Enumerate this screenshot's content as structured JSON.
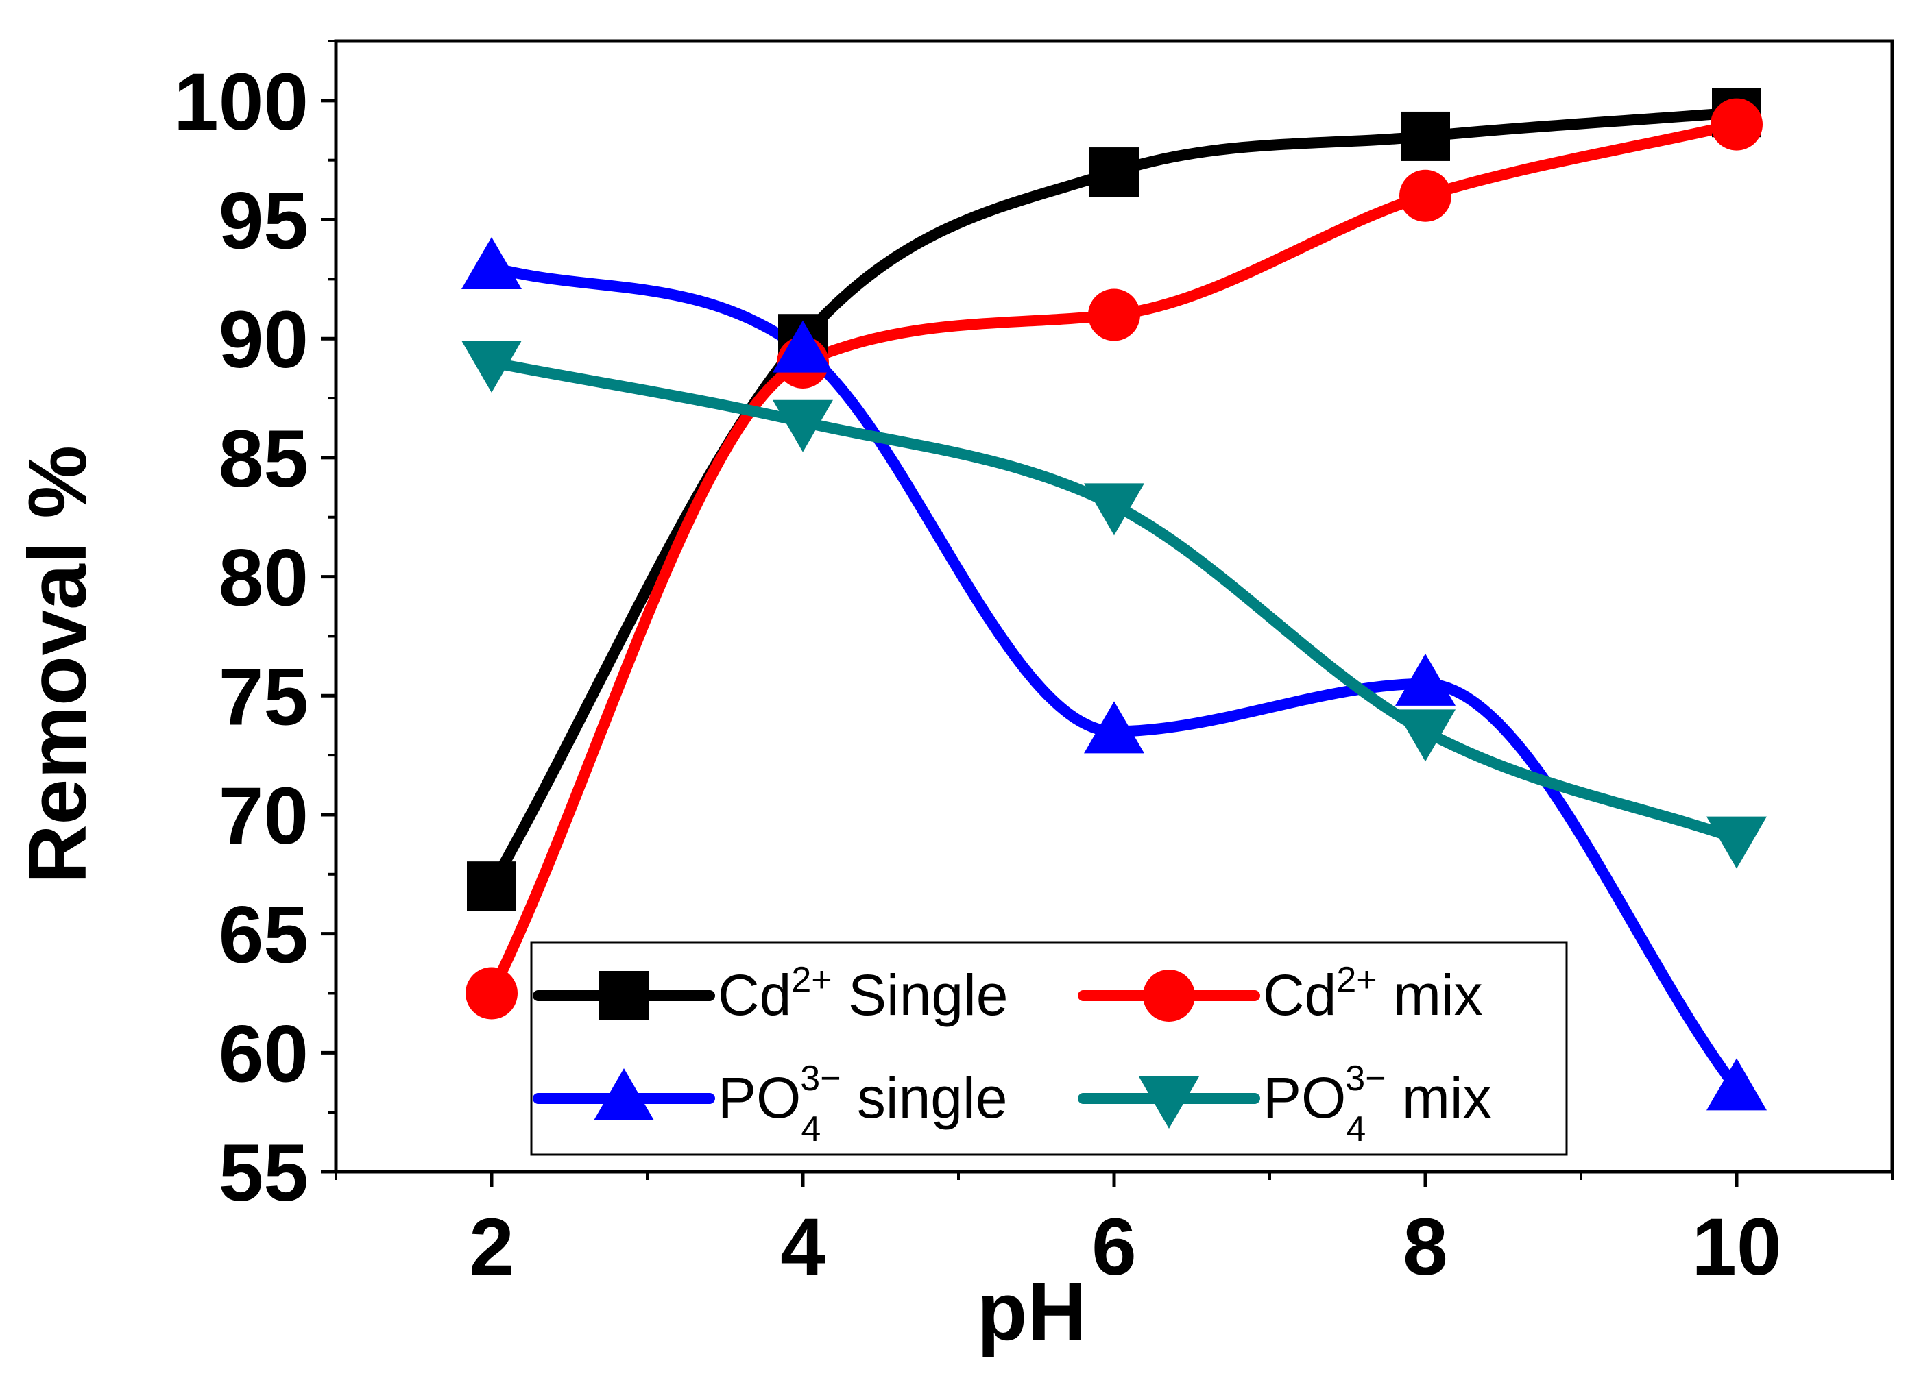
{
  "chart_data": {
    "type": "line",
    "title": "",
    "xlabel": "pH",
    "ylabel": "Removal %",
    "xlim": [
      1,
      11
    ],
    "ylim": [
      55,
      102.5
    ],
    "xticks": [
      2,
      4,
      6,
      8,
      10
    ],
    "xtick_labels": [
      "2",
      "4",
      "6",
      "8",
      "10"
    ],
    "yticks": [
      55,
      60,
      65,
      70,
      75,
      80,
      85,
      90,
      95,
      100
    ],
    "ytick_labels": [
      "55",
      "60",
      "65",
      "70",
      "75",
      "80",
      "85",
      "90",
      "95",
      "100"
    ],
    "grid": false,
    "legend_position": "bottom-center",
    "x": [
      2,
      4,
      6,
      8,
      10
    ],
    "series": [
      {
        "name": "Cd2+ Single",
        "legend_base": "Cd",
        "legend_sup": "2+",
        "legend_sub": "",
        "legend_tail": " Single",
        "color": "#000000",
        "marker": "square",
        "values": [
          67,
          90,
          97,
          98.5,
          99.5
        ]
      },
      {
        "name": "Cd2+ mix",
        "legend_base": "Cd",
        "legend_sup": "2+",
        "legend_sub": "",
        "legend_tail": " mix",
        "color": "#ff0000",
        "marker": "circle",
        "values": [
          62.5,
          89,
          91,
          96,
          99
        ]
      },
      {
        "name": "PO4 3- single",
        "legend_base": "PO",
        "legend_sup": "3−",
        "legend_sub": "4",
        "legend_tail": " single",
        "color": "#0000ff",
        "marker": "triangle-up",
        "values": [
          93,
          89.5,
          73.5,
          75.5,
          58.5
        ]
      },
      {
        "name": "PO4 3- mix",
        "legend_base": "PO",
        "legend_sup": "3−",
        "legend_sub": "4",
        "legend_tail": " mix",
        "color": "#008080",
        "marker": "triangle-down",
        "values": [
          89,
          86.5,
          83,
          73.5,
          69
        ]
      }
    ]
  }
}
